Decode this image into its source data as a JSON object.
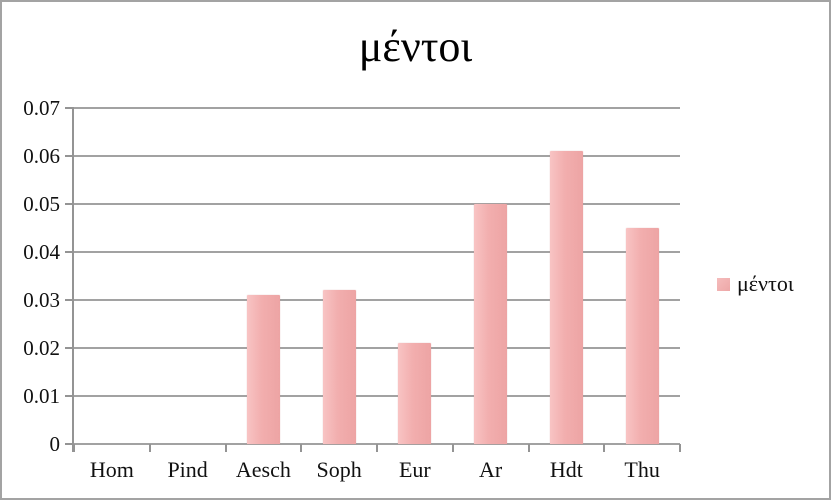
{
  "title": "μέντοι",
  "legend": {
    "label": "μέντοι",
    "swatch_color": "#efabab"
  },
  "chart_data": {
    "type": "bar",
    "title": "μέντοι",
    "categories": [
      "Hom",
      "Pind",
      "Aesch",
      "Soph",
      "Eur",
      "Ar",
      "Hdt",
      "Thu"
    ],
    "series": [
      {
        "name": "μέντοι",
        "values": [
          0,
          0,
          0.031,
          0.032,
          0.021,
          0.05,
          0.061,
          0.045
        ]
      }
    ],
    "ylim": [
      0,
      0.07
    ],
    "ytick_step": 0.01,
    "ytick_labels": [
      "0",
      "0.01",
      "0.02",
      "0.03",
      "0.04",
      "0.05",
      "0.06",
      "0.07"
    ],
    "xlabel": "",
    "ylabel": "",
    "grid": "horizontal-only",
    "legend_position": "right",
    "bar_color": "#f1acac",
    "bar_gradient": [
      "#f8c4c4",
      "#eda4a4"
    ],
    "axis_color": "#9a9a9a",
    "background_color": "#ffffff",
    "text_color": "#111111"
  }
}
